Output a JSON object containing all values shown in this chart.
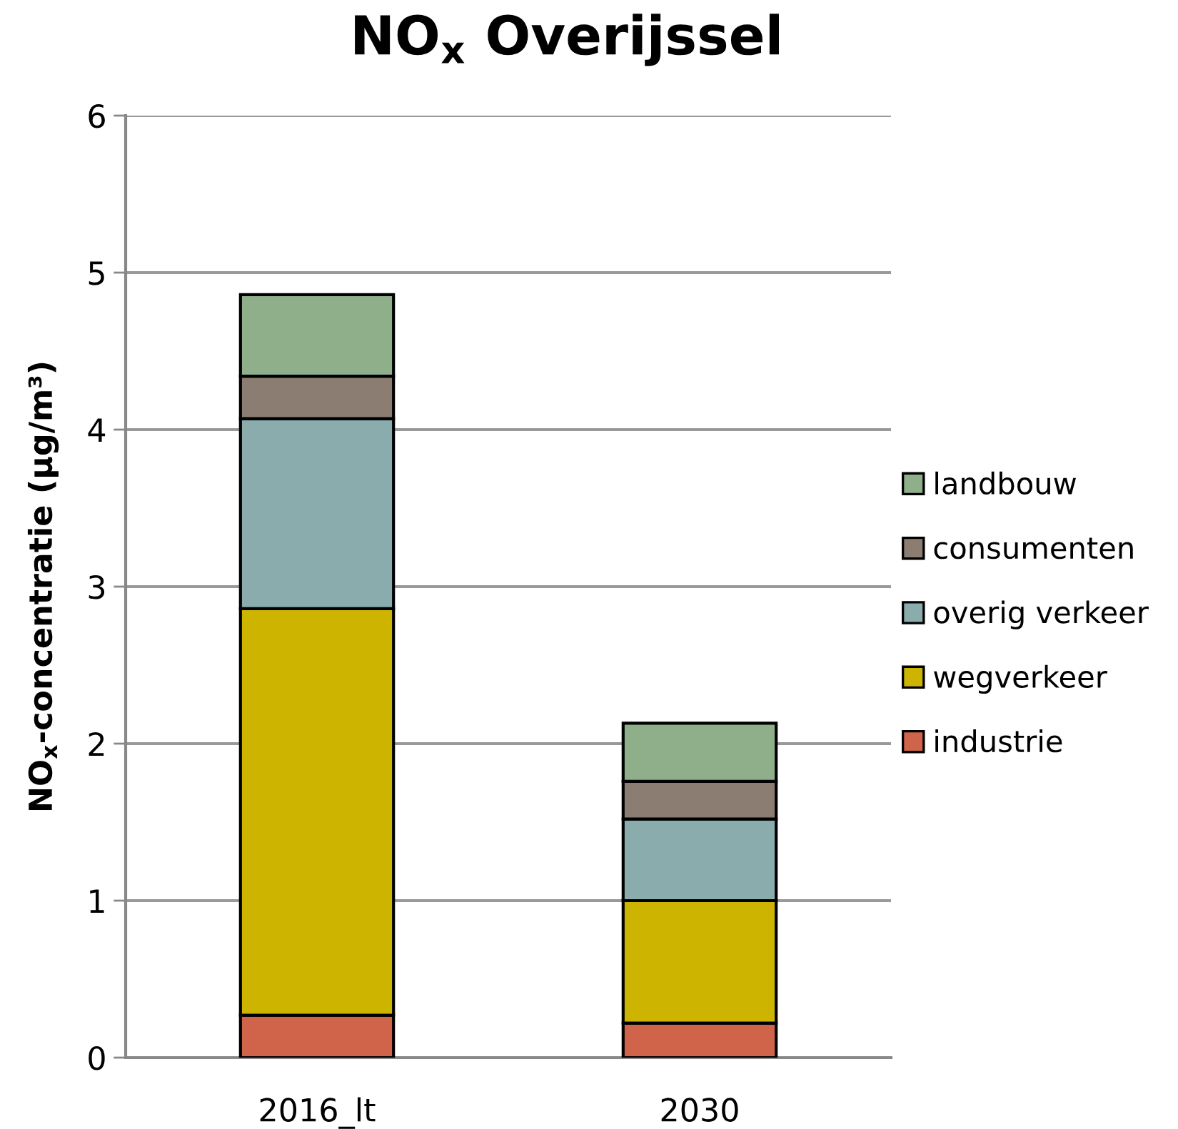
{
  "chart_data": {
    "type": "bar",
    "title": "NO$_{x}$ Overijssel",
    "ylabel": "NO$_{x}$-concentratie (µg/m³)",
    "categories": [
      "2016_lt",
      "2030"
    ],
    "stacked": true,
    "series": [
      {
        "name": "industrie",
        "color": "#d0644a",
        "values": [
          0.27,
          0.22
        ]
      },
      {
        "name": "wegverkeer",
        "color": "#ccb400",
        "values": [
          2.59,
          0.78
        ]
      },
      {
        "name": "overig verkeer",
        "color": "#8aacad",
        "values": [
          1.21,
          0.52
        ]
      },
      {
        "name": "consumenten",
        "color": "#8b7d72",
        "values": [
          0.27,
          0.24
        ]
      },
      {
        "name": "landbouw",
        "color": "#8fae8a",
        "values": [
          0.52,
          0.37
        ]
      }
    ],
    "ylim": [
      0,
      6
    ],
    "yticks": [
      0,
      1,
      2,
      3,
      4,
      5,
      6
    ],
    "grid": "y",
    "legend": "right"
  }
}
